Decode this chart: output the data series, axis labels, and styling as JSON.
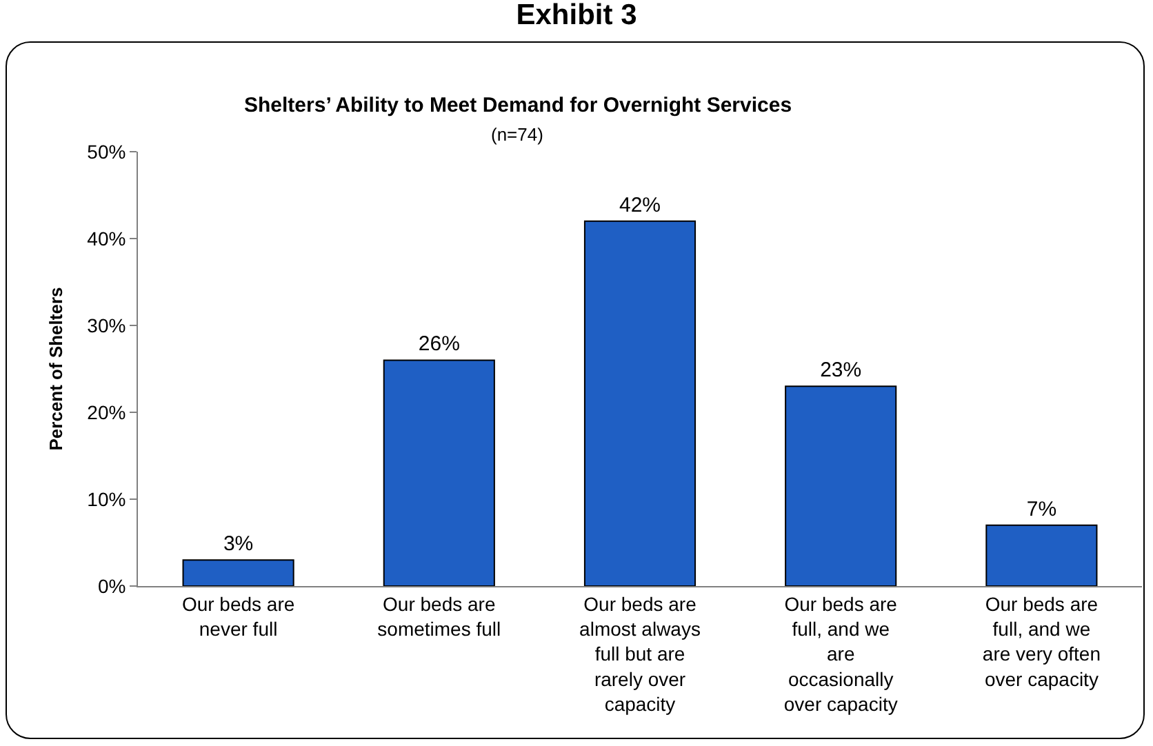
{
  "chart_data": {
    "type": "bar",
    "title": "Exhibit 3",
    "subtitle": "Shelters’ Ability to Meet Demand for Overnight Services",
    "annotations": [
      "(n=74)"
    ],
    "ylabel": "Percent of Shelters",
    "categories": [
      "Our beds are never full",
      "Our beds are sometimes full",
      "Our beds are almost always full but are rarely over capacity",
      "Our beds are full, and we are occasionally over capacity",
      "Our beds are full, and we are very often over capacity"
    ],
    "values": [
      3,
      26,
      42,
      23,
      7
    ],
    "color": "#1f5fc4",
    "value_labels": [
      "3%",
      "26%",
      "42%",
      "23%",
      "7%"
    ],
    "ylim": [
      0,
      50
    ],
    "yticks": [
      {
        "value": 0,
        "label": "0%"
      },
      {
        "value": 10,
        "label": "10%"
      },
      {
        "value": 20,
        "label": "20%"
      },
      {
        "value": 30,
        "label": "30%"
      },
      {
        "value": 40,
        "label": "40%"
      },
      {
        "value": 50,
        "label": "50%"
      }
    ],
    "grid": false
  }
}
